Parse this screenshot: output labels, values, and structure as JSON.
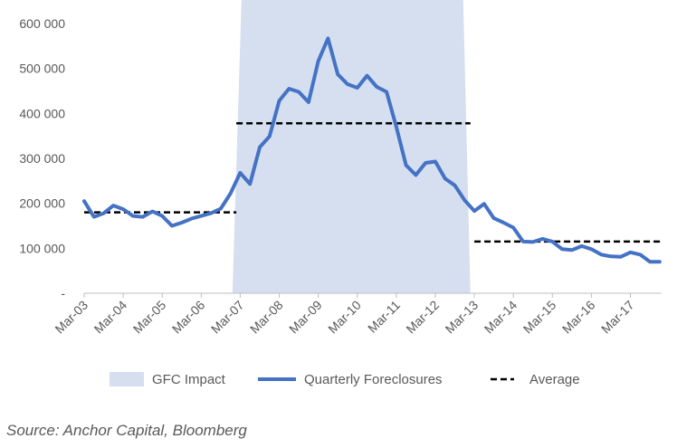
{
  "chart_data": {
    "type": "line",
    "y_ticks": [
      {
        "value": 0,
        "label": "-"
      },
      {
        "value": 100000,
        "label": "100 000"
      },
      {
        "value": 200000,
        "label": "200 000"
      },
      {
        "value": 300000,
        "label": "300 000"
      },
      {
        "value": 400000,
        "label": "400 000"
      },
      {
        "value": 500000,
        "label": "500 000"
      },
      {
        "value": 600000,
        "label": "600 000"
      }
    ],
    "ylim": [
      0,
      600000
    ],
    "x_ticks": [
      "Mar-03",
      "Mar-04",
      "Mar-05",
      "Mar-06",
      "Mar-07",
      "Mar-08",
      "Mar-09",
      "Mar-10",
      "Mar-11",
      "Mar-12",
      "Mar-13",
      "Mar-14",
      "Mar-15",
      "Mar-16",
      "Mar-17"
    ],
    "x_range_years": [
      2003.0,
      2017.8
    ],
    "grid": false,
    "legend_position": "bottom",
    "shaded_region": {
      "name": "GFC Impact",
      "x_start": 2006.8,
      "x_end": 2012.9,
      "color": "#d6dff0"
    },
    "series": [
      {
        "name": "Quarterly Foreclosures",
        "color": "#4472c4",
        "x": [
          2003.0,
          2003.25,
          2003.5,
          2003.75,
          2004.0,
          2004.25,
          2004.5,
          2004.75,
          2005.0,
          2005.25,
          2005.5,
          2005.75,
          2006.0,
          2006.25,
          2006.5,
          2006.75,
          2007.0,
          2007.25,
          2007.5,
          2007.75,
          2008.0,
          2008.25,
          2008.5,
          2008.75,
          2009.0,
          2009.25,
          2009.5,
          2009.75,
          2010.0,
          2010.25,
          2010.5,
          2010.75,
          2011.0,
          2011.25,
          2011.5,
          2011.75,
          2012.0,
          2012.25,
          2012.5,
          2012.75,
          2013.0,
          2013.25,
          2013.5,
          2013.75,
          2014.0,
          2014.25,
          2014.5,
          2014.75,
          2015.0,
          2015.25,
          2015.5,
          2015.75,
          2016.0,
          2016.25,
          2016.5,
          2016.75,
          2017.0,
          2017.25,
          2017.5,
          2017.75
        ],
        "values": [
          205000,
          170000,
          178000,
          195000,
          187000,
          172000,
          170000,
          182000,
          172000,
          150000,
          157000,
          166000,
          172000,
          178000,
          188000,
          222000,
          268000,
          243000,
          325000,
          349000,
          428000,
          455000,
          448000,
          425000,
          516000,
          567000,
          487000,
          465000,
          457000,
          484000,
          459000,
          448000,
          370000,
          285000,
          263000,
          290000,
          293000,
          255000,
          240000,
          207000,
          183000,
          199000,
          167000,
          157000,
          146000,
          115000,
          114000,
          121000,
          115000,
          98000,
          96000,
          105000,
          98000,
          86000,
          82000,
          81000,
          91000,
          86000,
          70000,
          70000
        ]
      },
      {
        "name": "Average",
        "color": "#000000",
        "dashed": true,
        "segments": [
          {
            "x_start": 2003.0,
            "x_end": 2006.9,
            "value": 180000
          },
          {
            "x_start": 2006.9,
            "x_end": 2012.9,
            "value": 378000
          },
          {
            "x_start": 2013.0,
            "x_end": 2017.8,
            "value": 115000
          }
        ]
      }
    ]
  },
  "legend": {
    "items": [
      {
        "label": "GFC Impact",
        "kind": "area",
        "color": "#d6dff0"
      },
      {
        "label": "Quarterly Foreclosures",
        "kind": "line",
        "color": "#4472c4"
      },
      {
        "label": "Average",
        "kind": "dash",
        "color": "#000000"
      }
    ]
  },
  "source": "Source: Anchor Capital, Bloomberg"
}
